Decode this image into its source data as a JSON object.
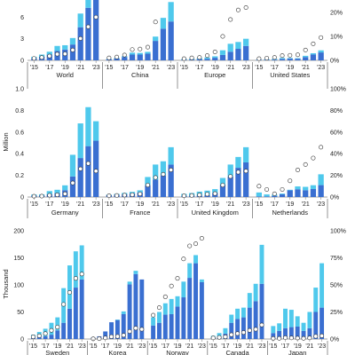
{
  "colors": {
    "bev": "#3a6fd1",
    "phev": "#4fc9ec",
    "share_marker_fill": "#ffffff",
    "share_marker_stroke": "#333333"
  },
  "units": {
    "middle": "Million",
    "bottom": "Thousand"
  },
  "chart_data": [
    {
      "type": "bar",
      "stacked": true,
      "series_names": [
        "bev",
        "phev",
        "share"
      ],
      "ylim_left": [
        0,
        9
      ],
      "left_ticks": [
        "0",
        "3",
        "6"
      ],
      "ylim_right": [
        0,
        0.27
      ],
      "right_ticks": [
        "0%",
        "10%",
        "20%"
      ],
      "x_ticks": [
        "'15",
        "'17",
        "'19",
        "'21",
        "'23"
      ],
      "groups": [
        {
          "name": "World",
          "bev": [
            0.3,
            0.5,
            0.8,
            1.3,
            1.5,
            2.2,
            4.6,
            7.3,
            9.5
          ],
          "phev": [
            0.2,
            0.3,
            0.4,
            0.7,
            0.6,
            0.9,
            1.9,
            2.9,
            3.5
          ],
          "share": [
            0.008,
            0.012,
            0.018,
            0.026,
            0.027,
            0.043,
            0.091,
            0.14,
            0.18
          ]
        },
        {
          "name": "China",
          "bev": [
            0.15,
            0.26,
            0.47,
            0.8,
            0.8,
            0.93,
            2.7,
            4.4,
            5.4
          ],
          "phev": [
            0.06,
            0.08,
            0.11,
            0.27,
            0.23,
            0.25,
            0.6,
            1.5,
            2.7
          ],
          "share": [
            0.01,
            0.014,
            0.022,
            0.045,
            0.047,
            0.055,
            0.16,
            0.29,
            0.38
          ]
        },
        {
          "name": "Europe",
          "bev": [
            0.1,
            0.11,
            0.17,
            0.21,
            0.36,
            0.75,
            1.2,
            1.6,
            2.0
          ],
          "phev": [
            0.1,
            0.11,
            0.14,
            0.19,
            0.2,
            0.65,
            1.1,
            0.95,
            1.0
          ],
          "share": [
            0.007,
            0.01,
            0.012,
            0.02,
            0.035,
            0.1,
            0.17,
            0.21,
            0.22
          ]
        },
        {
          "name": "United States",
          "bev": [
            0.07,
            0.09,
            0.1,
            0.21,
            0.24,
            0.23,
            0.46,
            0.81,
            1.1
          ],
          "phev": [
            0.04,
            0.07,
            0.1,
            0.12,
            0.08,
            0.07,
            0.17,
            0.18,
            0.29
          ],
          "share": [
            0.007,
            0.009,
            0.012,
            0.02,
            0.021,
            0.023,
            0.043,
            0.069,
            0.095
          ]
        }
      ]
    },
    {
      "type": "bar",
      "stacked": true,
      "series_names": [
        "bev",
        "phev",
        "share"
      ],
      "ylim_left": [
        0,
        1.0
      ],
      "left_ticks": [
        "0",
        "0.2",
        "0.4",
        "0.6",
        "0.8",
        "1.0"
      ],
      "ylim_right": [
        0,
        1.0
      ],
      "right_ticks": [
        "0%",
        "20%",
        "40%",
        "60%",
        "80%",
        "100%"
      ],
      "x_ticks": [
        "'15",
        "'17",
        "'19",
        "'21",
        "'23"
      ],
      "groups": [
        {
          "name": "Germany",
          "bev": [
            0.012,
            0.012,
            0.025,
            0.036,
            0.063,
            0.19,
            0.36,
            0.47,
            0.52
          ],
          "phev": [
            0.011,
            0.013,
            0.03,
            0.031,
            0.045,
            0.2,
            0.32,
            0.36,
            0.18
          ],
          "share": [
            0.007,
            0.008,
            0.016,
            0.02,
            0.03,
            0.13,
            0.26,
            0.31,
            0.24
          ]
        },
        {
          "name": "France",
          "bev": [
            0.017,
            0.022,
            0.025,
            0.032,
            0.043,
            0.11,
            0.16,
            0.2,
            0.3
          ],
          "phev": [
            0.005,
            0.007,
            0.013,
            0.016,
            0.019,
            0.075,
            0.14,
            0.13,
            0.16
          ],
          "share": [
            0.012,
            0.014,
            0.017,
            0.021,
            0.028,
            0.11,
            0.18,
            0.21,
            0.25
          ]
        },
        {
          "name": "United Kingdom",
          "bev": [
            0.01,
            0.011,
            0.014,
            0.016,
            0.038,
            0.11,
            0.19,
            0.27,
            0.32
          ],
          "phev": [
            0.019,
            0.026,
            0.036,
            0.043,
            0.035,
            0.066,
            0.11,
            0.1,
            0.14
          ],
          "share": [
            0.011,
            0.014,
            0.019,
            0.026,
            0.032,
            0.11,
            0.19,
            0.23,
            0.24
          ]
        },
        {
          "name": "Netherlands",
          "bev": [
            0.006,
            0.006,
            0.011,
            0.025,
            0.062,
            0.072,
            0.063,
            0.074,
            0.11
          ],
          "phev": [
            0.036,
            0.018,
            0.011,
            0.007,
            0.005,
            0.026,
            0.031,
            0.035,
            0.1
          ],
          "share": [
            0.1,
            0.07,
            0.03,
            0.07,
            0.15,
            0.25,
            0.3,
            0.36,
            0.46
          ]
        }
      ]
    },
    {
      "type": "bar",
      "stacked": true,
      "series_names": [
        "bev",
        "phev",
        "share"
      ],
      "ylim_left": [
        0,
        200
      ],
      "left_ticks": [
        "0",
        "50",
        "100",
        "150",
        "200"
      ],
      "ylim_right": [
        0,
        1.0
      ],
      "right_ticks": [
        "0%",
        "25%",
        "50%",
        "75%",
        "100%"
      ],
      "x_ticks": [
        "'15",
        "'17",
        "'19",
        "'21",
        "'23"
      ],
      "groups": [
        {
          "name": "Sweden",
          "bev": [
            3,
            4,
            5,
            8,
            16,
            30,
            56,
            95,
            110
          ],
          "phev": [
            5,
            9,
            14,
            22,
            24,
            64,
            80,
            67,
            63
          ],
          "share": [
            0.02,
            0.03,
            0.05,
            0.08,
            0.11,
            0.32,
            0.43,
            0.56,
            0.6
          ]
        },
        {
          "name": "Korea",
          "bev": [
            3,
            5,
            14,
            31,
            35,
            46,
            101,
            120,
            110
          ],
          "phev": [
            0,
            0,
            0,
            0,
            1,
            5,
            5,
            6,
            0
          ],
          "share": [
            0.002,
            0.003,
            0.01,
            0.022,
            0.024,
            0.035,
            0.07,
            0.1,
            0.09
          ]
        },
        {
          "name": "Norway",
          "bev": [
            25,
            30,
            45,
            46,
            60,
            77,
            113,
            140,
            105
          ],
          "phev": [
            15,
            20,
            21,
            28,
            19,
            29,
            27,
            15,
            5
          ],
          "share": [
            0.22,
            0.29,
            0.39,
            0.49,
            0.56,
            0.74,
            0.86,
            0.88,
            0.93
          ]
        },
        {
          "name": "Canada",
          "bev": [
            3,
            5,
            10,
            30,
            37,
            40,
            58,
            70,
            102
          ],
          "phev": [
            3,
            6,
            10,
            15,
            19,
            18,
            27,
            32,
            72
          ],
          "share": [
            0.01,
            0.015,
            0.02,
            0.04,
            0.05,
            0.06,
            0.08,
            0.09,
            0.13
          ]
        },
        {
          "name": "Japan",
          "bev": [
            11,
            15,
            20,
            22,
            23,
            15,
            20,
            50,
            58
          ],
          "phev": [
            13,
            14,
            36,
            32,
            19,
            15,
            30,
            45,
            82
          ],
          "share": [
            0.005,
            0.006,
            0.012,
            0.01,
            0.008,
            0.006,
            0.01,
            0.025,
            0.03
          ]
        }
      ]
    }
  ]
}
